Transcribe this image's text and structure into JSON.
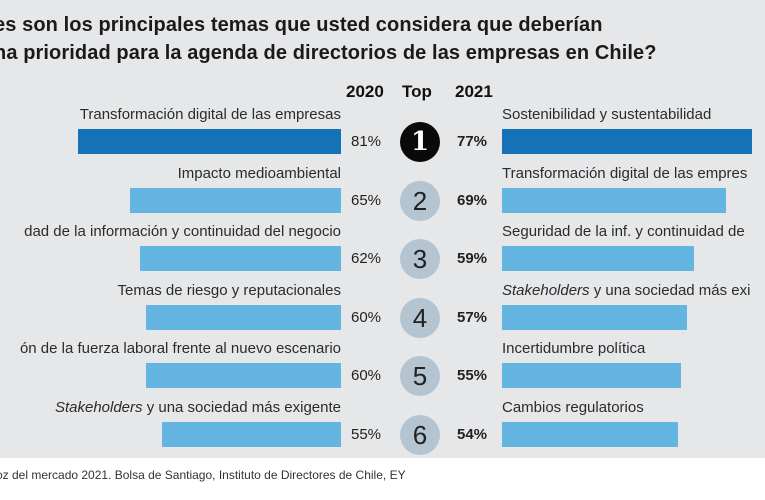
{
  "chart_data": {
    "type": "bar",
    "title_lines": [
      "es son los principales temas que usted considera que deberían",
      "na prioridad para la agenda de directorios de las empresas en Chile?"
    ],
    "column_headers": {
      "left": "2020",
      "center": "Top",
      "right": "2021"
    },
    "ranks": [
      "1",
      "2",
      "3",
      "4",
      "5",
      "6"
    ],
    "series": [
      {
        "name": "2020",
        "categories": [
          "Transformación digital de las empresas",
          "Impacto medioambiental",
          "dad de la información y continuidad del negocio",
          "Temas de riesgo y reputacionales",
          "ón de la fuerza laboral frente al nuevo escenario",
          "Stakeholders y una sociedad más exigente"
        ],
        "italic_prefix": [
          "",
          "",
          "",
          "",
          "",
          "Stakeholders"
        ],
        "values": [
          81,
          65,
          62,
          60,
          60,
          55
        ],
        "labels": [
          "81%",
          "65%",
          "62%",
          "60%",
          "60%",
          "55%"
        ]
      },
      {
        "name": "2021",
        "categories": [
          "Sostenibilidad y sustentabilidad",
          "Transformación digital de las empres",
          "Seguridad de la inf. y continuidad de",
          "Stakeholders y una sociedad más exi",
          "Incertidumbre política",
          "Cambios regulatorios"
        ],
        "italic_prefix": [
          "",
          "",
          "",
          "Stakeholders",
          "",
          ""
        ],
        "values": [
          77,
          69,
          59,
          57,
          55,
          54
        ],
        "labels": [
          "77%",
          "69%",
          "59%",
          "57%",
          "55%",
          "54%"
        ]
      }
    ],
    "colors": {
      "top": "#1572b6",
      "rest": "#64b5e2",
      "rank_top_bg": "#0a0a0a",
      "rank_bg": "#b4c4d0"
    },
    "source": "oz del mercado 2021. Bolsa de Santiago, Instituto de Directores de Chile, EY"
  }
}
